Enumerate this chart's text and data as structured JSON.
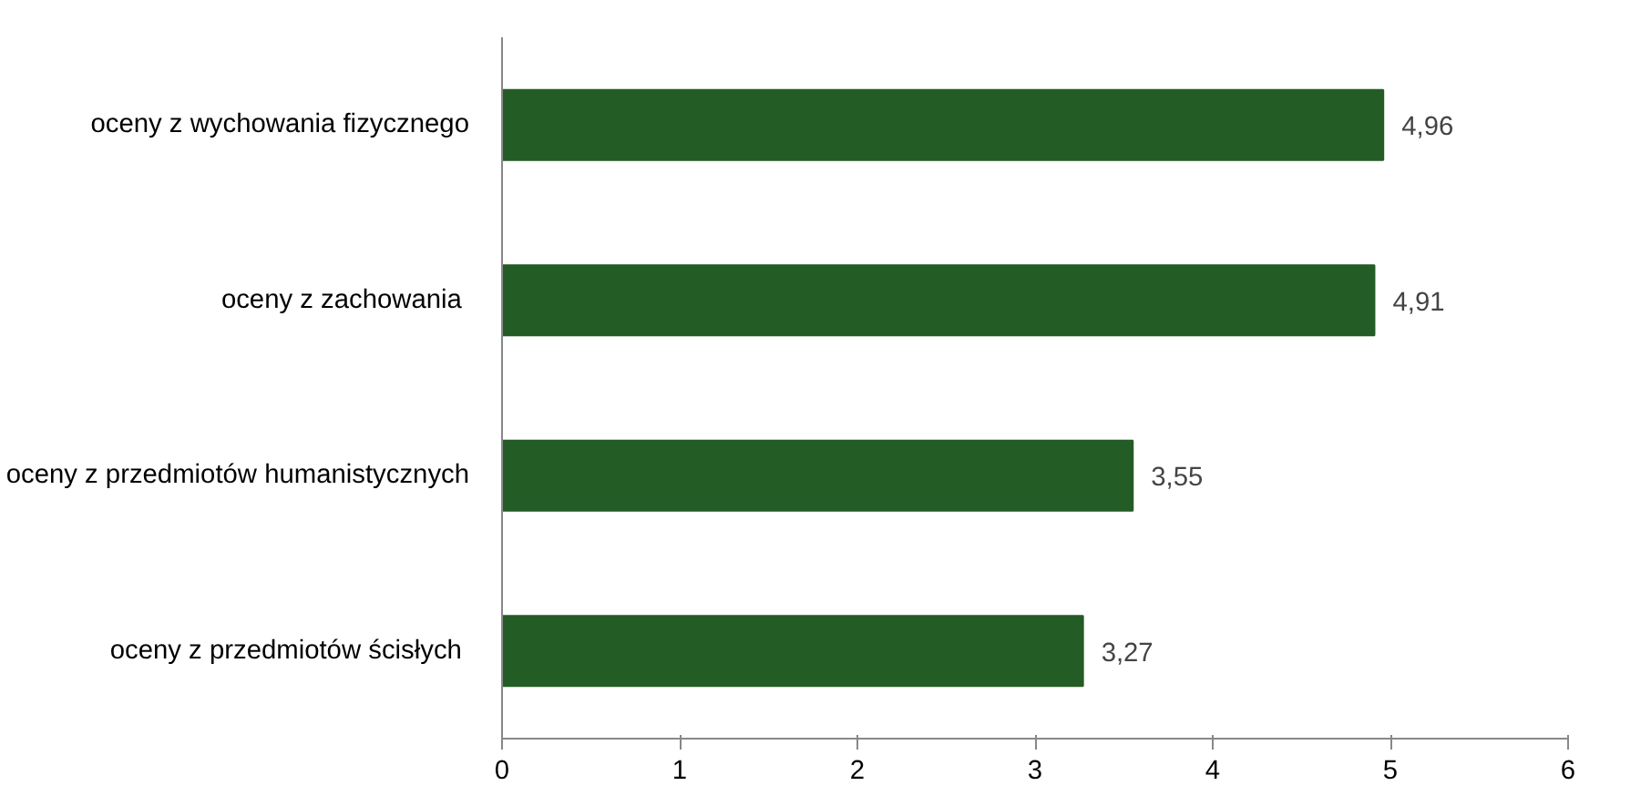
{
  "chart_data": {
    "type": "bar",
    "orientation": "horizontal",
    "categories": [
      "oceny z wychowania fizycznego",
      "oceny  z zachowania",
      "oceny z przedmiotów humanistycznych",
      "oceny  z przedmiotów ścisłych"
    ],
    "values": [
      4.96,
      4.91,
      3.55,
      3.27
    ],
    "value_labels": [
      "4,96",
      "4,91",
      "3,55",
      "3,27"
    ],
    "color": "#245c26",
    "xlim": [
      0,
      6
    ],
    "xticks": [
      0,
      1,
      2,
      3,
      4,
      5,
      6
    ],
    "grid": false
  }
}
